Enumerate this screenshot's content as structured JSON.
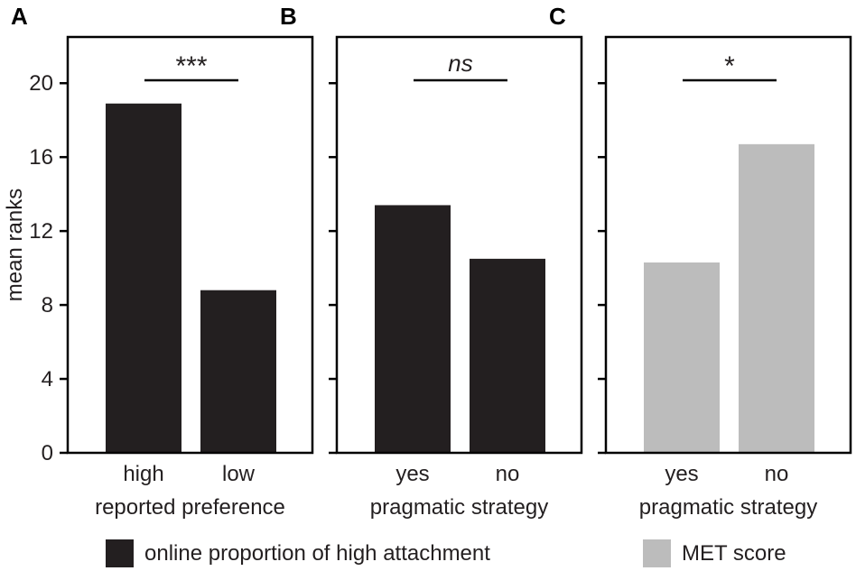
{
  "chart_data": [
    {
      "type": "bar",
      "panel_label": "A",
      "categories": [
        "high",
        "low"
      ],
      "values": [
        18.9,
        8.8
      ],
      "series_name": "online proportion of high attachment",
      "xlabel": "reported preference",
      "ylabel": "mean ranks",
      "ylim": [
        0,
        22.5
      ],
      "yticks": [
        0,
        4,
        8,
        12,
        16,
        20
      ],
      "significance": "***",
      "significance_italic": false,
      "bar_color": "#231f20"
    },
    {
      "type": "bar",
      "panel_label": "B",
      "categories": [
        "yes",
        "no"
      ],
      "values": [
        13.4,
        10.5
      ],
      "series_name": "online proportion of high attachment",
      "xlabel": "pragmatic strategy",
      "ylim": [
        0,
        22.5
      ],
      "yticks": [
        0,
        4,
        8,
        12,
        16,
        20
      ],
      "significance": "ns",
      "significance_italic": true,
      "bar_color": "#231f20"
    },
    {
      "type": "bar",
      "panel_label": "C",
      "categories": [
        "yes",
        "no"
      ],
      "values": [
        10.3,
        16.7
      ],
      "series_name": "MET score",
      "xlabel": "pragmatic strategy",
      "ylim": [
        0,
        22.5
      ],
      "yticks": [
        0,
        4,
        8,
        12,
        16,
        20
      ],
      "significance": "*",
      "significance_italic": false,
      "bar_color": "#bcbcbc"
    }
  ],
  "legend": {
    "items": [
      {
        "label": "online proportion of high attachment",
        "color": "#231f20"
      },
      {
        "label": "MET score",
        "color": "#bcbcbc"
      }
    ],
    "position": "bottom"
  }
}
